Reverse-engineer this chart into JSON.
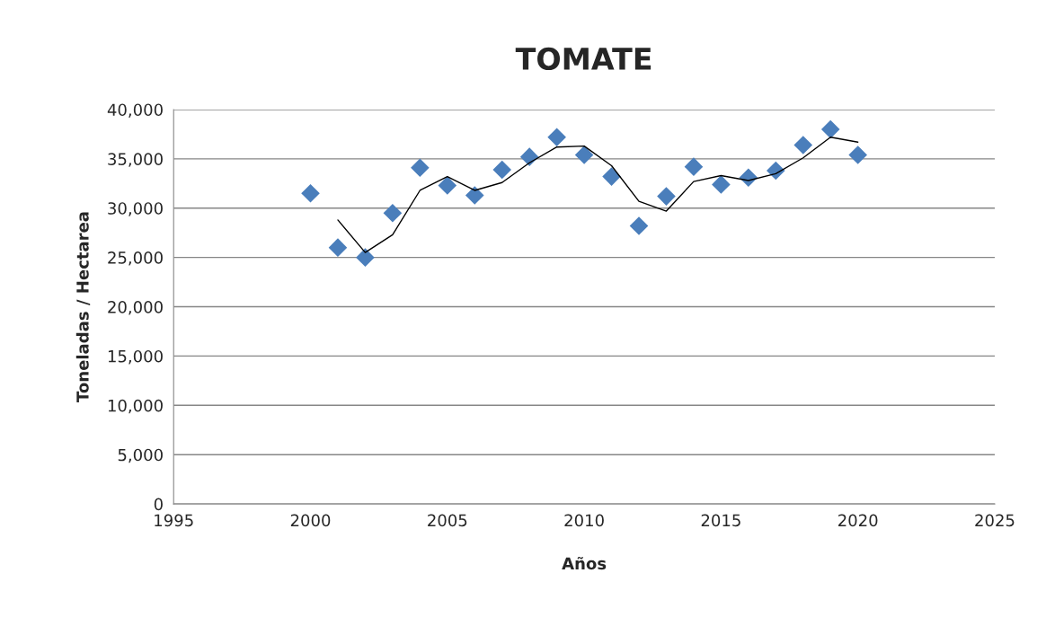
{
  "chart_data": {
    "type": "scatter",
    "title": "TOMATE",
    "xlabel": "Años",
    "ylabel": "Toneladas / Hectarea",
    "x": [
      2000,
      2001,
      2002,
      2003,
      2004,
      2005,
      2006,
      2007,
      2008,
      2009,
      2010,
      2011,
      2012,
      2013,
      2014,
      2015,
      2016,
      2017,
      2018,
      2019,
      2020
    ],
    "series": [
      {
        "color": "#4a7ebb",
        "marker": "diamond",
        "values": [
          31500,
          26000,
          25000,
          29500,
          34100,
          32300,
          31300,
          33900,
          35200,
          37200,
          35400,
          33200,
          28200,
          31200,
          34200,
          32400,
          33100,
          33800,
          36400,
          38000,
          35400
        ]
      },
      {
        "type": "line",
        "color": "#000000",
        "marker": "none",
        "line_style": "solid",
        "x": [
          2001,
          2002,
          2003,
          2004,
          2005,
          2006,
          2007,
          2008,
          2009,
          2010,
          2011,
          2012,
          2013,
          2014,
          2015,
          2016,
          2017,
          2018,
          2019,
          2020
        ],
        "values": [
          28800,
          25500,
          27300,
          31800,
          33200,
          31800,
          32600,
          34600,
          36200,
          36300,
          34300,
          30700,
          29700,
          32700,
          33300,
          32800,
          33500,
          35100,
          37200,
          36700
        ]
      }
    ],
    "xlim": [
      1995,
      2025
    ],
    "xticks": [
      1995,
      2000,
      2005,
      2010,
      2015,
      2020,
      2025
    ],
    "ylim": [
      0,
      40000
    ],
    "yticks": [
      {
        "value": 0,
        "label": "0"
      },
      {
        "value": 5000,
        "label": "5,000"
      },
      {
        "value": 10000,
        "label": "10,000"
      },
      {
        "value": 15000,
        "label": "15,000"
      },
      {
        "value": 20000,
        "label": "20,000"
      },
      {
        "value": 25000,
        "label": "25,000"
      },
      {
        "value": 30000,
        "label": "30,000"
      },
      {
        "value": 35000,
        "label": "35,000"
      },
      {
        "value": 40000,
        "label": "40,000"
      }
    ],
    "grid": "y"
  }
}
